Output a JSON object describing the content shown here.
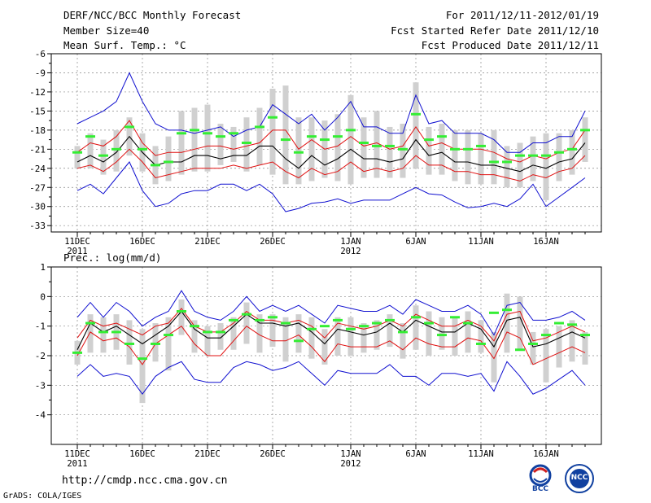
{
  "header": {
    "title": "DERF/NCC/BCC Monthly Forecast",
    "member_size": "Member Size=40",
    "period": "For 2011/12/11-2012/01/19",
    "fcst_started": "Fcst Started Refer Date 2011/12/10",
    "fcst_produced": "Fcst Produced Date 2011/12/11"
  },
  "footer": {
    "url": "http://cmdp.ncc.cma.gov.cn",
    "grads_credit": "GrADS: COLA/IGES",
    "logo_bcc_text": "BCC",
    "logo_ncc_text": "NCC"
  },
  "colors": {
    "ensemble_mean": "#000000",
    "spread_band": "#e01010",
    "extreme_range": "#1010d0",
    "box": "#d0d0d0",
    "observed": "#33ee33"
  },
  "chart_data": [
    {
      "type": "line",
      "panel": "temperature",
      "title": "Mean Surf. Temp.: °C",
      "x_start_day": 0,
      "ylim": [
        -34,
        -6
      ],
      "yticks": [
        -6,
        -9,
        -12,
        -15,
        -18,
        -21,
        -24,
        -27,
        -30,
        -33
      ],
      "ytick_labels": [
        "-6",
        "-9",
        "-12",
        "-15",
        "-18",
        "-21",
        "-24",
        "-27",
        "-30",
        "-33"
      ],
      "xticks": [
        {
          "day": 0,
          "label": "11DEC",
          "sublabel": "2011"
        },
        {
          "day": 5,
          "label": "16DEC",
          "sublabel": ""
        },
        {
          "day": 10,
          "label": "21DEC",
          "sublabel": ""
        },
        {
          "day": 15,
          "label": "26DEC",
          "sublabel": ""
        },
        {
          "day": 21,
          "label": "1JAN",
          "sublabel": "2012"
        },
        {
          "day": 26,
          "label": "6JAN",
          "sublabel": ""
        },
        {
          "day": 31,
          "label": "11JAN",
          "sublabel": ""
        },
        {
          "day": 36,
          "label": "16JAN",
          "sublabel": ""
        }
      ],
      "series": [
        {
          "name": "max",
          "values": [
            -17,
            -16,
            -15,
            -13.5,
            -9,
            -13.5,
            -17,
            -18,
            -18,
            -18.5,
            -18,
            -17.5,
            -19,
            -18,
            -17.5,
            -14,
            -15.5,
            -17,
            -15.5,
            -18,
            -16,
            -13.5,
            -17.5,
            -17.5,
            -18.5,
            -18.5,
            -12.5,
            -17,
            -16.5,
            -18.5,
            -18.5,
            -18.5,
            -19.5,
            -21.5,
            -21.5,
            -20,
            -20,
            -19,
            -19,
            -15
          ]
        },
        {
          "name": "upper",
          "values": [
            -21.5,
            -20,
            -20.5,
            -19,
            -16.5,
            -20,
            -22,
            -21.5,
            -21.5,
            -21,
            -20.5,
            -20.5,
            -21,
            -20.5,
            -20,
            -18,
            -18,
            -21,
            -19.5,
            -21,
            -20.5,
            -19,
            -20.5,
            -20,
            -21,
            -20.5,
            -17.5,
            -20.5,
            -20,
            -21,
            -21,
            -21,
            -21.5,
            -22.5,
            -23,
            -22,
            -22.5,
            -21.5,
            -21,
            -18
          ]
        },
        {
          "name": "mean",
          "values": [
            -23,
            -22,
            -23,
            -21.5,
            -19,
            -21.5,
            -23.5,
            -23,
            -23,
            -22,
            -22,
            -22.5,
            -22,
            -22,
            -20.5,
            -20.5,
            -22.5,
            -24,
            -22,
            -23.5,
            -22.5,
            -21,
            -22.5,
            -22.5,
            -23,
            -22.5,
            -19.5,
            -22,
            -21.5,
            -23,
            -23,
            -23.5,
            -23.5,
            -24,
            -24.5,
            -23.5,
            -24,
            -23,
            -22.5,
            -20
          ]
        },
        {
          "name": "lower",
          "values": [
            -24,
            -23.5,
            -24.5,
            -23,
            -21,
            -23,
            -25.5,
            -25,
            -24.5,
            -24,
            -24,
            -24,
            -23.5,
            -24,
            -23.5,
            -23,
            -24.5,
            -25.5,
            -24,
            -25,
            -24.5,
            -23,
            -24.5,
            -24,
            -24.5,
            -24,
            -22,
            -23.5,
            -23.5,
            -24.5,
            -24.5,
            -25,
            -25,
            -25.5,
            -26,
            -25,
            -25.5,
            -24.5,
            -24,
            -22
          ]
        },
        {
          "name": "min",
          "values": [
            -27.5,
            -26.5,
            -28,
            -25.5,
            -23,
            -27.5,
            -30,
            -29.5,
            -28,
            -27.5,
            -27.5,
            -26.5,
            -26.5,
            -27.5,
            -26.5,
            -28,
            -30.8,
            -30.3,
            -29.5,
            -29.3,
            -28.8,
            -29.5,
            -29,
            -29,
            -29,
            -28,
            -27,
            -28,
            -28.2,
            -29.3,
            -30.2,
            -30,
            -29.5,
            -30,
            -28.8,
            -26.5,
            -30,
            -28.5,
            -27,
            -25.5
          ]
        },
        {
          "name": "box_top",
          "values": [
            -20.5,
            -18.5,
            -19.5,
            -18,
            -16,
            -18.5,
            -20.5,
            -19,
            -15,
            -14.5,
            -14,
            -17,
            -17.5,
            -16,
            -14.5,
            -11.5,
            -11,
            -16,
            -16,
            -16.5,
            -15.5,
            -12.5,
            -16,
            -15,
            -17.5,
            -17,
            -10.5,
            -17.5,
            -17,
            -18,
            -18,
            -18.5,
            -18,
            -20.5,
            -20,
            -19,
            -18.5,
            -18.5,
            -18,
            -16
          ]
        },
        {
          "name": "box_bottom",
          "values": [
            -24,
            -24,
            -25,
            -24.5,
            -22,
            -24.5,
            -26.5,
            -26,
            -25,
            -24.5,
            -24.5,
            -23.5,
            -23,
            -24.5,
            -23.5,
            -25,
            -26.5,
            -26.5,
            -26,
            -25.5,
            -26,
            -26.5,
            -25.5,
            -25.5,
            -25.5,
            -25.5,
            -24,
            -25,
            -25,
            -26,
            -26.5,
            -26.5,
            -26.5,
            -27,
            -27,
            -26,
            -29,
            -26,
            -25,
            -23
          ]
        },
        {
          "name": "observed",
          "values": [
            -21.5,
            -19,
            -22,
            -21,
            -17.5,
            -21,
            -23.5,
            -23,
            -18.5,
            -18,
            -18.5,
            -19,
            -18.5,
            -20,
            -17.5,
            -16,
            -19.5,
            -21.5,
            -19,
            -19.5,
            -19,
            -18,
            -20,
            -20.5,
            -20.5,
            -21,
            -15.5,
            -19.5,
            -19,
            -21,
            -21,
            -20.5,
            -23,
            -23,
            -22,
            -22,
            -22,
            -21.5,
            -21,
            -18
          ]
        }
      ]
    },
    {
      "type": "line",
      "panel": "precipitation",
      "title": "Prec.: log(mm/d)",
      "x_start_day": 0,
      "ylim": [
        -5,
        1
      ],
      "yticks": [
        1,
        0,
        -1,
        -2,
        -3,
        -4
      ],
      "ytick_labels": [
        "1",
        "0",
        "-1",
        "-2",
        "-3",
        "-4"
      ],
      "xticks": [
        {
          "day": 0,
          "label": "11DEC",
          "sublabel": "2011"
        },
        {
          "day": 5,
          "label": "16DEC",
          "sublabel": ""
        },
        {
          "day": 10,
          "label": "21DEC",
          "sublabel": ""
        },
        {
          "day": 15,
          "label": "26DEC",
          "sublabel": ""
        },
        {
          "day": 21,
          "label": "1JAN",
          "sublabel": "2012"
        },
        {
          "day": 26,
          "label": "6JAN",
          "sublabel": ""
        },
        {
          "day": 31,
          "label": "11JAN",
          "sublabel": ""
        },
        {
          "day": 36,
          "label": "16JAN",
          "sublabel": ""
        }
      ],
      "series": [
        {
          "name": "max",
          "values": [
            -0.7,
            -0.2,
            -0.7,
            -0.2,
            -0.5,
            -1.0,
            -0.7,
            -0.5,
            0.2,
            -0.5,
            -0.7,
            -0.8,
            -0.5,
            0.0,
            -0.5,
            -0.3,
            -0.5,
            -0.3,
            -0.6,
            -0.9,
            -0.3,
            -0.4,
            -0.5,
            -0.5,
            -0.3,
            -0.6,
            -0.1,
            -0.3,
            -0.5,
            -0.5,
            -0.3,
            -0.6,
            -1.3,
            -0.3,
            -0.2,
            -0.8,
            -0.8,
            -0.7,
            -0.5,
            -0.8
          ]
        },
        {
          "name": "upper",
          "values": [
            -1.4,
            -0.8,
            -1.0,
            -0.9,
            -1.1,
            -1.3,
            -1.0,
            -0.9,
            -0.4,
            -1.0,
            -1.2,
            -1.2,
            -0.9,
            -0.5,
            -0.8,
            -0.8,
            -0.9,
            -0.8,
            -1.0,
            -1.4,
            -0.9,
            -1.0,
            -1.1,
            -1.0,
            -0.8,
            -1.0,
            -0.6,
            -0.8,
            -1.0,
            -1.0,
            -0.8,
            -1.0,
            -1.5,
            -0.6,
            -0.5,
            -1.5,
            -1.4,
            -1.2,
            -1.0,
            -1.2
          ]
        },
        {
          "name": "mean",
          "values": [
            -1.8,
            -0.9,
            -1.2,
            -1.0,
            -1.3,
            -1.6,
            -1.3,
            -1.0,
            -0.5,
            -1.1,
            -1.4,
            -1.4,
            -1.0,
            -0.6,
            -0.9,
            -0.9,
            -1.0,
            -0.9,
            -1.2,
            -1.6,
            -1.1,
            -1.2,
            -1.3,
            -1.2,
            -0.9,
            -1.2,
            -0.8,
            -1.0,
            -1.2,
            -1.2,
            -0.9,
            -1.1,
            -1.7,
            -0.8,
            -0.7,
            -1.7,
            -1.6,
            -1.4,
            -1.2,
            -1.4
          ]
        },
        {
          "name": "lower",
          "values": [
            -2.0,
            -1.2,
            -1.5,
            -1.4,
            -1.7,
            -2.3,
            -1.6,
            -1.3,
            -1.0,
            -1.6,
            -2.0,
            -2.0,
            -1.5,
            -1.0,
            -1.3,
            -1.5,
            -1.5,
            -1.3,
            -1.7,
            -2.2,
            -1.6,
            -1.7,
            -1.7,
            -1.7,
            -1.5,
            -1.8,
            -1.4,
            -1.6,
            -1.7,
            -1.7,
            -1.4,
            -1.5,
            -2.1,
            -1.2,
            -1.4,
            -2.3,
            -2.1,
            -1.9,
            -1.7,
            -1.9
          ]
        },
        {
          "name": "min",
          "values": [
            -2.7,
            -2.3,
            -2.7,
            -2.6,
            -2.7,
            -3.3,
            -2.7,
            -2.4,
            -2.2,
            -2.8,
            -2.9,
            -2.9,
            -2.4,
            -2.2,
            -2.3,
            -2.5,
            -2.4,
            -2.2,
            -2.6,
            -3.0,
            -2.5,
            -2.6,
            -2.6,
            -2.6,
            -2.3,
            -2.7,
            -2.7,
            -3.0,
            -2.6,
            -2.6,
            -2.7,
            -2.6,
            -3.2,
            -2.2,
            -2.7,
            -3.3,
            -3.1,
            -2.8,
            -2.5,
            -3.0
          ]
        },
        {
          "name": "box_top",
          "values": [
            -1.5,
            -0.6,
            -0.7,
            -0.6,
            -0.8,
            -1.1,
            -0.9,
            -0.7,
            -0.1,
            -0.8,
            -1.0,
            -0.9,
            -0.7,
            -0.2,
            -0.6,
            -0.6,
            -0.7,
            -0.6,
            -0.7,
            -1.1,
            -0.7,
            -0.7,
            -0.9,
            -0.8,
            -0.6,
            -0.9,
            -0.3,
            -0.5,
            -0.7,
            -0.7,
            -0.5,
            -0.8,
            -1.2,
            0.1,
            0.0,
            -1.2,
            -1.1,
            -1.0,
            -0.8,
            -1.2
          ]
        },
        {
          "name": "box_bottom",
          "values": [
            -2.3,
            -1.9,
            -1.9,
            -1.8,
            -2.3,
            -3.6,
            -2.2,
            -2.5,
            -1.3,
            -1.9,
            -2.0,
            -1.8,
            -1.8,
            -1.6,
            -1.9,
            -1.7,
            -2.2,
            -1.9,
            -2.1,
            -2.3,
            -2.0,
            -2.0,
            -1.9,
            -1.8,
            -1.7,
            -2.1,
            -1.8,
            -2.0,
            -1.8,
            -2.0,
            -1.9,
            -1.9,
            -2.9,
            -1.9,
            -1.8,
            -2.3,
            -2.9,
            -2.4,
            -2.2,
            -2.3
          ]
        },
        {
          "name": "observed",
          "values": [
            -1.9,
            -0.9,
            -1.2,
            -1.2,
            -1.6,
            -2.1,
            -1.6,
            -1.3,
            -0.5,
            -1.0,
            -1.2,
            -1.2,
            -0.8,
            -0.6,
            -0.8,
            -0.7,
            -0.9,
            -1.5,
            -1.1,
            -1.0,
            -0.8,
            -1.1,
            -1.0,
            -0.9,
            -0.8,
            -1.2,
            -0.7,
            -0.9,
            -1.3,
            -0.7,
            -0.9,
            -1.6,
            -0.55,
            -0.45,
            -1.8,
            -1.6,
            -1.3,
            -0.9,
            -0.95,
            -1.3
          ]
        }
      ]
    }
  ]
}
